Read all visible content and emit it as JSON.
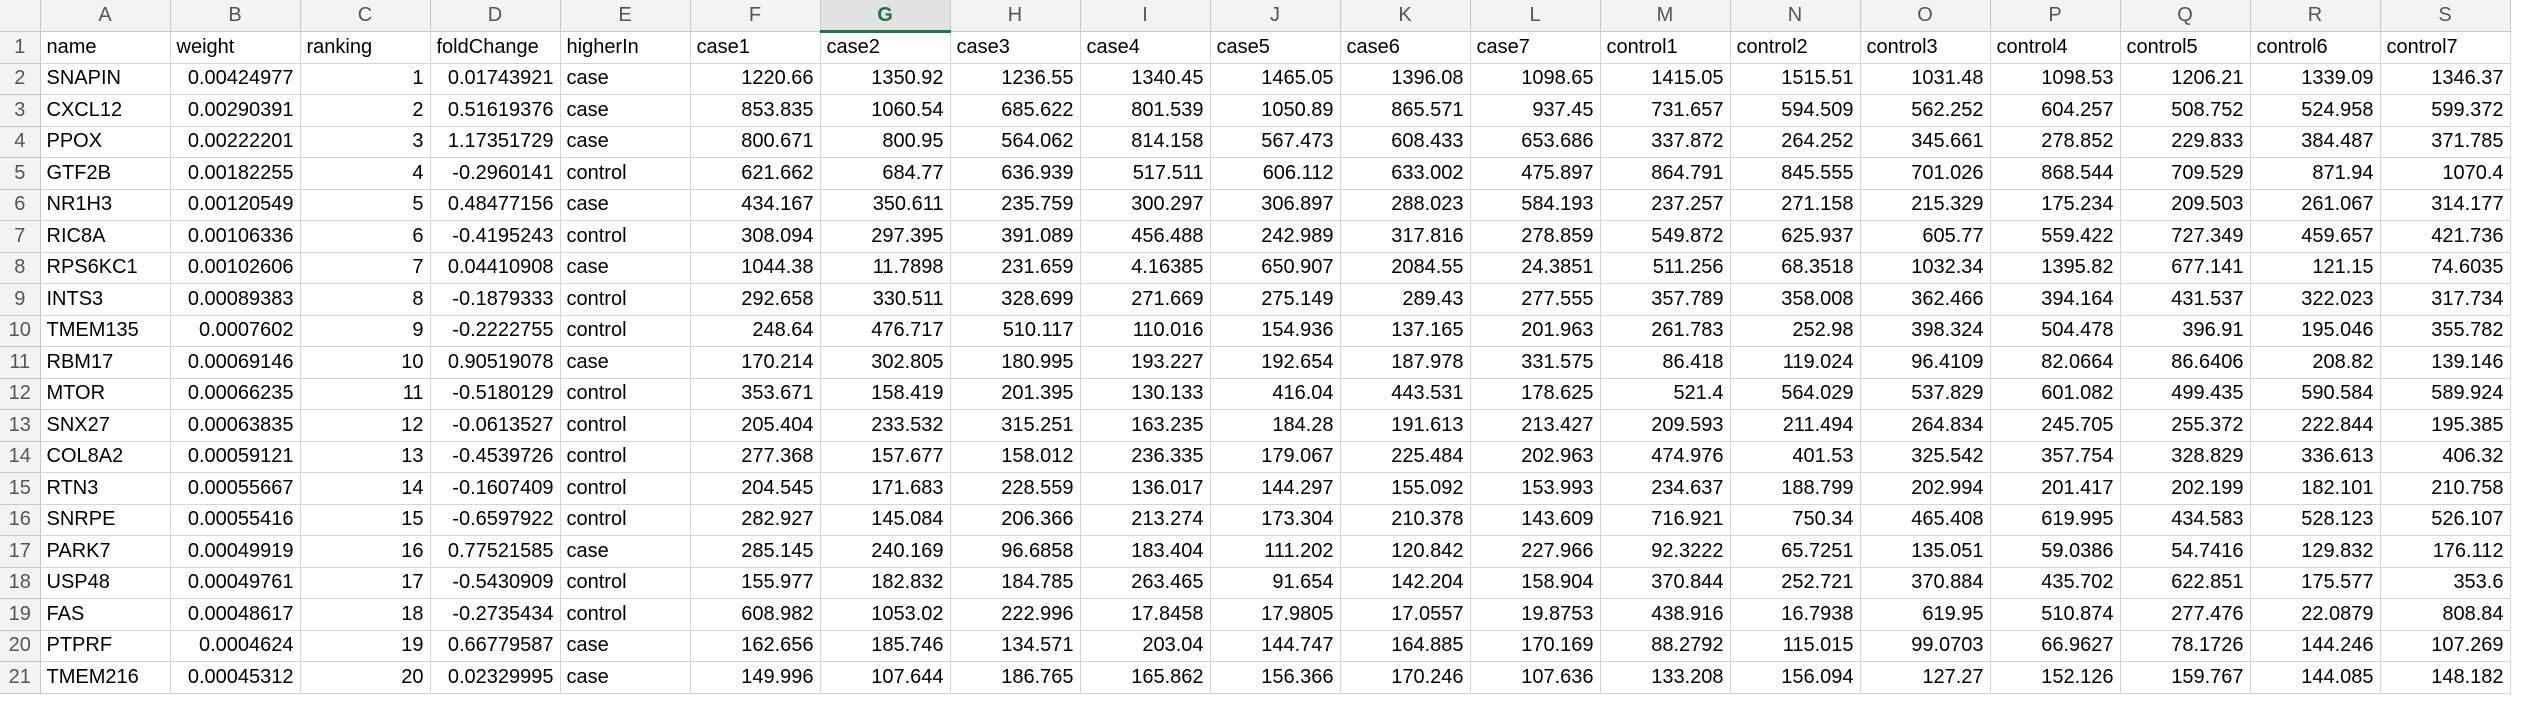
{
  "active_column": "G",
  "columns": [
    "A",
    "B",
    "C",
    "D",
    "E",
    "F",
    "G",
    "H",
    "I",
    "J",
    "K",
    "L",
    "M",
    "N",
    "O",
    "P",
    "Q",
    "R",
    "S"
  ],
  "header_row": [
    "name",
    "weight",
    "ranking",
    "foldChange",
    "higherIn",
    "case1",
    "case2",
    "case3",
    "case4",
    "case5",
    "case6",
    "case7",
    "control1",
    "control2",
    "control3",
    "control4",
    "control5",
    "control6",
    "control7"
  ],
  "rows": [
    [
      "SNAPIN",
      "0.00424977",
      "1",
      "0.01743921",
      "case",
      "1220.66",
      "1350.92",
      "1236.55",
      "1340.45",
      "1465.05",
      "1396.08",
      "1098.65",
      "1415.05",
      "1515.51",
      "1031.48",
      "1098.53",
      "1206.21",
      "1339.09",
      "1346.37"
    ],
    [
      "CXCL12",
      "0.00290391",
      "2",
      "0.51619376",
      "case",
      "853.835",
      "1060.54",
      "685.622",
      "801.539",
      "1050.89",
      "865.571",
      "937.45",
      "731.657",
      "594.509",
      "562.252",
      "604.257",
      "508.752",
      "524.958",
      "599.372"
    ],
    [
      "PPOX",
      "0.00222201",
      "3",
      "1.17351729",
      "case",
      "800.671",
      "800.95",
      "564.062",
      "814.158",
      "567.473",
      "608.433",
      "653.686",
      "337.872",
      "264.252",
      "345.661",
      "278.852",
      "229.833",
      "384.487",
      "371.785"
    ],
    [
      "GTF2B",
      "0.00182255",
      "4",
      "-0.2960141",
      "control",
      "621.662",
      "684.77",
      "636.939",
      "517.511",
      "606.112",
      "633.002",
      "475.897",
      "864.791",
      "845.555",
      "701.026",
      "868.544",
      "709.529",
      "871.94",
      "1070.4"
    ],
    [
      "NR1H3",
      "0.00120549",
      "5",
      "0.48477156",
      "case",
      "434.167",
      "350.611",
      "235.759",
      "300.297",
      "306.897",
      "288.023",
      "584.193",
      "237.257",
      "271.158",
      "215.329",
      "175.234",
      "209.503",
      "261.067",
      "314.177"
    ],
    [
      "RIC8A",
      "0.00106336",
      "6",
      "-0.4195243",
      "control",
      "308.094",
      "297.395",
      "391.089",
      "456.488",
      "242.989",
      "317.816",
      "278.859",
      "549.872",
      "625.937",
      "605.77",
      "559.422",
      "727.349",
      "459.657",
      "421.736"
    ],
    [
      "RPS6KC1",
      "0.00102606",
      "7",
      "0.04410908",
      "case",
      "1044.38",
      "11.7898",
      "231.659",
      "4.16385",
      "650.907",
      "2084.55",
      "24.3851",
      "511.256",
      "68.3518",
      "1032.34",
      "1395.82",
      "677.141",
      "121.15",
      "74.6035"
    ],
    [
      "INTS3",
      "0.00089383",
      "8",
      "-0.1879333",
      "control",
      "292.658",
      "330.511",
      "328.699",
      "271.669",
      "275.149",
      "289.43",
      "277.555",
      "357.789",
      "358.008",
      "362.466",
      "394.164",
      "431.537",
      "322.023",
      "317.734"
    ],
    [
      "TMEM135",
      "0.0007602",
      "9",
      "-0.2222755",
      "control",
      "248.64",
      "476.717",
      "510.117",
      "110.016",
      "154.936",
      "137.165",
      "201.963",
      "261.783",
      "252.98",
      "398.324",
      "504.478",
      "396.91",
      "195.046",
      "355.782"
    ],
    [
      "RBM17",
      "0.00069146",
      "10",
      "0.90519078",
      "case",
      "170.214",
      "302.805",
      "180.995",
      "193.227",
      "192.654",
      "187.978",
      "331.575",
      "86.418",
      "119.024",
      "96.4109",
      "82.0664",
      "86.6406",
      "208.82",
      "139.146"
    ],
    [
      "MTOR",
      "0.00066235",
      "11",
      "-0.5180129",
      "control",
      "353.671",
      "158.419",
      "201.395",
      "130.133",
      "416.04",
      "443.531",
      "178.625",
      "521.4",
      "564.029",
      "537.829",
      "601.082",
      "499.435",
      "590.584",
      "589.924"
    ],
    [
      "SNX27",
      "0.00063835",
      "12",
      "-0.0613527",
      "control",
      "205.404",
      "233.532",
      "315.251",
      "163.235",
      "184.28",
      "191.613",
      "213.427",
      "209.593",
      "211.494",
      "264.834",
      "245.705",
      "255.372",
      "222.844",
      "195.385"
    ],
    [
      "COL8A2",
      "0.00059121",
      "13",
      "-0.4539726",
      "control",
      "277.368",
      "157.677",
      "158.012",
      "236.335",
      "179.067",
      "225.484",
      "202.963",
      "474.976",
      "401.53",
      "325.542",
      "357.754",
      "328.829",
      "336.613",
      "406.32"
    ],
    [
      "RTN3",
      "0.00055667",
      "14",
      "-0.1607409",
      "control",
      "204.545",
      "171.683",
      "228.559",
      "136.017",
      "144.297",
      "155.092",
      "153.993",
      "234.637",
      "188.799",
      "202.994",
      "201.417",
      "202.199",
      "182.101",
      "210.758"
    ],
    [
      "SNRPE",
      "0.00055416",
      "15",
      "-0.6597922",
      "control",
      "282.927",
      "145.084",
      "206.366",
      "213.274",
      "173.304",
      "210.378",
      "143.609",
      "716.921",
      "750.34",
      "465.408",
      "619.995",
      "434.583",
      "528.123",
      "526.107"
    ],
    [
      "PARK7",
      "0.00049919",
      "16",
      "0.77521585",
      "case",
      "285.145",
      "240.169",
      "96.6858",
      "183.404",
      "111.202",
      "120.842",
      "227.966",
      "92.3222",
      "65.7251",
      "135.051",
      "59.0386",
      "54.7416",
      "129.832",
      "176.112"
    ],
    [
      "USP48",
      "0.00049761",
      "17",
      "-0.5430909",
      "control",
      "155.977",
      "182.832",
      "184.785",
      "263.465",
      "91.654",
      "142.204",
      "158.904",
      "370.844",
      "252.721",
      "370.884",
      "435.702",
      "622.851",
      "175.577",
      "353.6"
    ],
    [
      "FAS",
      "0.00048617",
      "18",
      "-0.2735434",
      "control",
      "608.982",
      "1053.02",
      "222.996",
      "17.8458",
      "17.9805",
      "17.0557",
      "19.8753",
      "438.916",
      "16.7938",
      "619.95",
      "510.874",
      "277.476",
      "22.0879",
      "808.84"
    ],
    [
      "PTPRF",
      "0.0004624",
      "19",
      "0.66779587",
      "case",
      "162.656",
      "185.746",
      "134.571",
      "203.04",
      "144.747",
      "164.885",
      "170.169",
      "88.2792",
      "115.015",
      "99.0703",
      "66.9627",
      "78.1726",
      "144.246",
      "107.269"
    ],
    [
      "TMEM216",
      "0.00045312",
      "20",
      "0.02329995",
      "case",
      "149.996",
      "107.644",
      "186.765",
      "165.862",
      "156.366",
      "170.246",
      "107.636",
      "133.208",
      "156.094",
      "127.27",
      "152.126",
      "159.767",
      "144.085",
      "148.182"
    ]
  ],
  "numeric_columns": [
    1,
    2,
    3,
    5,
    6,
    7,
    8,
    9,
    10,
    11,
    12,
    13,
    14,
    15,
    16,
    17,
    18
  ]
}
